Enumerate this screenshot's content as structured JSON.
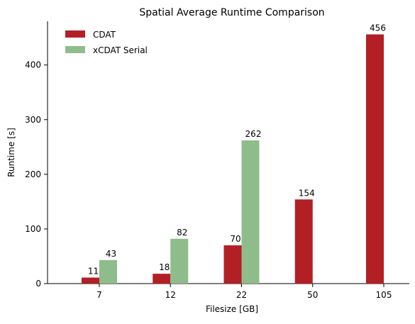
{
  "chart_data": {
    "type": "bar",
    "title": "Spatial Average Runtime Comparison",
    "xlabel": "Filesize [GB]",
    "ylabel": "Runtime [s]",
    "categories": [
      "7",
      "12",
      "22",
      "50",
      "105"
    ],
    "series": [
      {
        "name": "CDAT",
        "color": "#b22025",
        "values": [
          11,
          18,
          70,
          154,
          456
        ],
        "labels": [
          "11",
          "18",
          "70",
          "154",
          "456"
        ]
      },
      {
        "name": "xCDAT Serial",
        "color": "#8fbc8b",
        "values": [
          43,
          82,
          262,
          null,
          null
        ],
        "labels": [
          "43",
          "82",
          "262",
          "",
          ""
        ]
      }
    ],
    "ylim": [
      0,
      480
    ],
    "yticks": [
      0,
      100,
      200,
      300,
      400
    ],
    "grid": false,
    "legend_position": "top-left"
  }
}
